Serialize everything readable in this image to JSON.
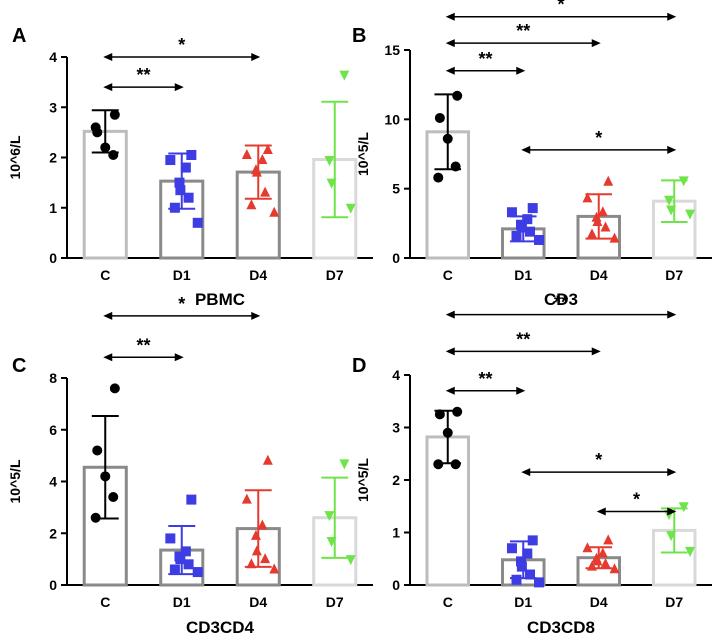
{
  "colors": {
    "C": "#000000",
    "D1": "#3d3de3",
    "D4": "#e53a2f",
    "D7": "#6fe34a",
    "bar_C": "#bdbdbd",
    "bar_D1": "#8a8a8a",
    "bar_D4": "#8a8a8a",
    "bar_D7": "#d9d9d9"
  },
  "chart_data": [
    {
      "panel": "A",
      "type": "bar",
      "title": "PBMC",
      "ylabel": "10^6/L",
      "categories": [
        "C",
        "D1",
        "D4",
        "D7"
      ],
      "ylim": [
        0,
        4
      ],
      "yticks": [
        0,
        1,
        2,
        3,
        4
      ],
      "tick_labels": [
        "0",
        "1",
        "2",
        "3",
        "4"
      ],
      "means": [
        2.52,
        1.53,
        1.71,
        1.96
      ],
      "sd": [
        0.42,
        0.55,
        0.53,
        1.15
      ],
      "bar_colors": [
        "#bdbdbd",
        "#8a8a8a",
        "#8a8a8a",
        "#d9d9d9"
      ],
      "points": [
        [
          2.85,
          2.5,
          2.2,
          2.05,
          2.6
        ],
        [
          2.05,
          1.95,
          1.8,
          1.5,
          1.35,
          1.2,
          1.0,
          0.7
        ],
        [
          2.15,
          2.05,
          1.95,
          1.75,
          1.7,
          1.3,
          1.05,
          0.9
        ],
        [
          3.65,
          1.95,
          1.5,
          1.0
        ]
      ],
      "comparisons": [
        {
          "from": 0,
          "to": 1,
          "label": "**",
          "y": 3.4
        },
        {
          "from": 0,
          "to": 2,
          "label": "*",
          "y": 4.0
        }
      ]
    },
    {
      "panel": "B",
      "type": "bar",
      "title": "CD3",
      "ylabel": "10^5/L",
      "categories": [
        "C",
        "D1",
        "D4",
        "D7"
      ],
      "ylim": [
        0,
        15
      ],
      "yticks": [
        0,
        5,
        10,
        15
      ],
      "tick_labels": [
        "0",
        "5",
        "10",
        "15"
      ],
      "means": [
        9.1,
        2.1,
        3.0,
        4.1
      ],
      "sd": [
        2.7,
        0.9,
        1.6,
        1.5
      ],
      "bar_colors": [
        "#bdbdbd",
        "#8a8a8a",
        "#8a8a8a",
        "#d9d9d9"
      ],
      "points": [
        [
          11.7,
          10.1,
          8.6,
          6.6,
          5.8
        ],
        [
          3.6,
          3.3,
          2.8,
          2.4,
          2.2,
          1.9,
          1.6,
          1.3
        ],
        [
          5.5,
          4.3,
          3.3,
          2.9,
          2.6,
          2.2,
          1.7,
          1.4
        ],
        [
          5.6,
          4.2,
          3.5,
          3.2
        ]
      ],
      "comparisons": [
        {
          "from": 0,
          "to": 1,
          "label": "**",
          "y": 13.5
        },
        {
          "from": 0,
          "to": 2,
          "label": "**",
          "y": 15.5
        },
        {
          "from": 0,
          "to": 3,
          "label": "*",
          "y": 17.4
        },
        {
          "from": 1,
          "to": 3,
          "label": "*",
          "y": 7.8
        }
      ]
    },
    {
      "panel": "C",
      "type": "bar",
      "title": "CD3CD4",
      "ylabel": "10^5/L",
      "categories": [
        "C",
        "D1",
        "D4",
        "D7"
      ],
      "ylim": [
        0,
        8
      ],
      "yticks": [
        0,
        2,
        4,
        6,
        8
      ],
      "tick_labels": [
        "0",
        "2",
        "4",
        "6",
        "8"
      ],
      "means": [
        4.55,
        1.35,
        2.18,
        2.6
      ],
      "sd": [
        1.98,
        0.93,
        1.48,
        1.55
      ],
      "bar_colors": [
        "#8a8a8a",
        "#8a8a8a",
        "#8a8a8a",
        "#d9d9d9"
      ],
      "points": [
        [
          7.6,
          5.2,
          4.2,
          3.4,
          2.6
        ],
        [
          3.3,
          1.8,
          1.3,
          1.1,
          1.0,
          0.8,
          0.6,
          0.5
        ],
        [
          4.8,
          3.3,
          2.3,
          1.9,
          1.3,
          1.0,
          0.8,
          0.6
        ],
        [
          4.7,
          2.7,
          1.7,
          1.0
        ]
      ],
      "comparisons": [
        {
          "from": 0,
          "to": 1,
          "label": "**",
          "y": 8.8
        },
        {
          "from": 0,
          "to": 2,
          "label": "*",
          "y": 10.4
        }
      ]
    },
    {
      "panel": "D",
      "type": "bar",
      "title": "CD3CD8",
      "ylabel": "10^5/L",
      "categories": [
        "C",
        "D1",
        "D4",
        "D7"
      ],
      "ylim": [
        0,
        4
      ],
      "yticks": [
        0,
        1,
        2,
        3,
        4
      ],
      "tick_labels": [
        "0",
        "1",
        "2",
        "3",
        "4"
      ],
      "means": [
        2.82,
        0.48,
        0.52,
        1.04
      ],
      "sd": [
        0.5,
        0.35,
        0.2,
        0.42
      ],
      "bar_colors": [
        "#bdbdbd",
        "#8a8a8a",
        "#8a8a8a",
        "#d9d9d9"
      ],
      "points": [
        [
          3.3,
          3.25,
          2.9,
          2.3,
          2.3
        ],
        [
          0.85,
          0.7,
          0.6,
          0.45,
          0.35,
          0.2,
          0.1,
          0.05
        ],
        [
          0.85,
          0.7,
          0.6,
          0.5,
          0.45,
          0.4,
          0.35,
          0.3
        ],
        [
          1.5,
          1.35,
          0.95,
          0.65
        ]
      ],
      "comparisons": [
        {
          "from": 0,
          "to": 1,
          "label": "**",
          "y": 3.7
        },
        {
          "from": 0,
          "to": 2,
          "label": "**",
          "y": 4.45
        },
        {
          "from": 0,
          "to": 3,
          "label": "**",
          "y": 5.15
        },
        {
          "from": 1,
          "to": 3,
          "label": "*",
          "y": 2.15
        },
        {
          "from": 2,
          "to": 3,
          "label": "*",
          "y": 1.4
        }
      ]
    }
  ]
}
